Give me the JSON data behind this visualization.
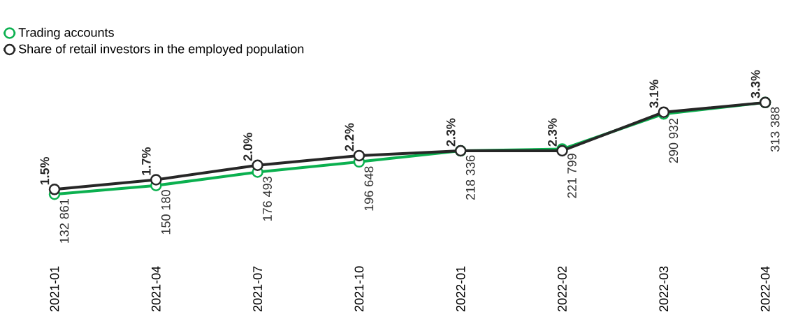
{
  "chart_data": {
    "type": "line",
    "categories": [
      "2021-01",
      "2021-04",
      "2021-07",
      "2021-10",
      "2022-01",
      "2022-02",
      "2022-03",
      "2022-04"
    ],
    "series": [
      {
        "name": "Trading accounts",
        "color": "#0bb04f",
        "values": [
          132861,
          150180,
          176493,
          196648,
          218336,
          221799,
          290932,
          313388
        ],
        "value_labels": [
          "132 861",
          "150 180",
          "176 493",
          "196 648",
          "218 336",
          "221 799",
          "290 932",
          "313 388"
        ]
      },
      {
        "name": "Share of retail investors in the employed population",
        "color": "#262626",
        "axis": "y2",
        "values": [
          1.5,
          1.7,
          2.0,
          2.2,
          2.3,
          2.3,
          3.1,
          3.3
        ],
        "value_labels": [
          "1.5%",
          "1.7%",
          "2.0%",
          "2.2%",
          "2.3%",
          "2.3%",
          "3.1%",
          "3.3%"
        ]
      }
    ],
    "marker": "circle",
    "line_style": "solid",
    "legend": "top left",
    "tick_labels": "x",
    "grid": false
  }
}
